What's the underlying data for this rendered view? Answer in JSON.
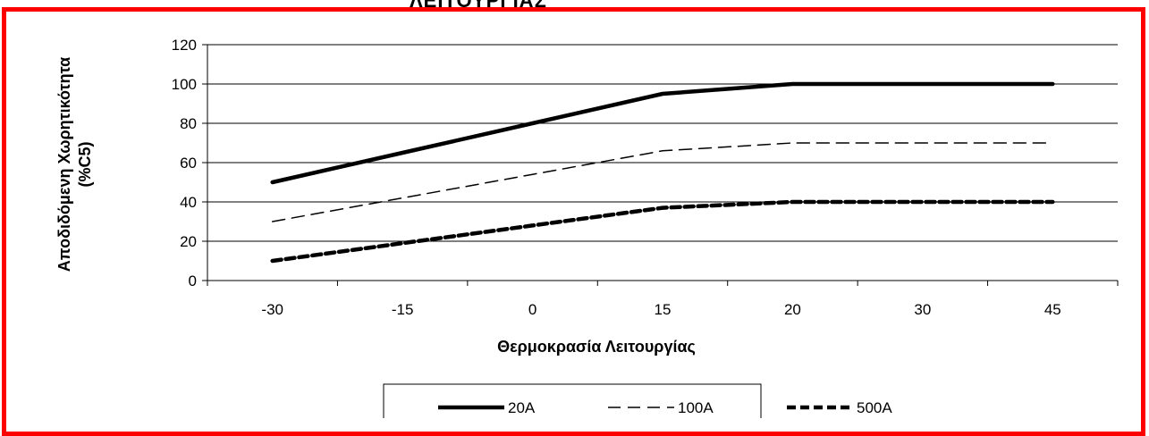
{
  "header": {
    "caption": "ΛΕΙΤΟΥΡΓΙΑΣ"
  },
  "colors": {
    "frame": "#ff0000",
    "line": "#000000",
    "grid": "#000000"
  },
  "chart_data": {
    "type": "line",
    "title": "",
    "xlabel": "Θερμοκρασία Λειτουργίας",
    "ylabel_lines": [
      "Αποδιδόμενη Χωρητικότητα",
      "(%C5)"
    ],
    "categories": [
      "-30",
      "-15",
      "0",
      "15",
      "20",
      "30",
      "45"
    ],
    "x_axis_categorical": true,
    "ylim": [
      0,
      120
    ],
    "yticks": [
      0,
      20,
      40,
      60,
      80,
      100,
      120
    ],
    "grid": "horizontal",
    "legend_position": "bottom",
    "series": [
      {
        "name": "20A",
        "style": "solid-thick",
        "values": [
          50,
          65,
          80,
          95,
          100,
          100,
          100
        ]
      },
      {
        "name": "100A",
        "style": "dashed-thin",
        "values": [
          30,
          42,
          54,
          66,
          70,
          70,
          70
        ]
      },
      {
        "name": "500A",
        "style": "dashed-thick",
        "values": [
          10,
          19,
          28,
          37,
          40,
          40,
          40
        ]
      }
    ]
  }
}
